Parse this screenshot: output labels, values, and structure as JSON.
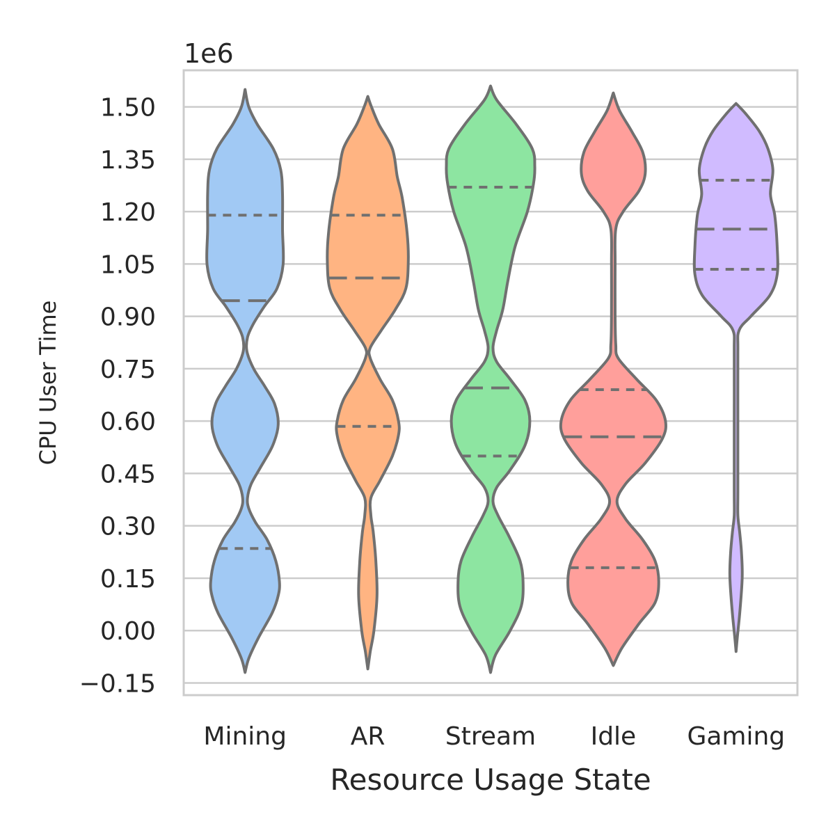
{
  "chart_data": {
    "type": "violin",
    "xlabel": "Resource Usage State",
    "ylabel": "CPU User Time",
    "offset_text": "1e6",
    "ylim": [
      -0.185,
      1.605
    ],
    "y_ticks": [
      "−0.15",
      "0.00",
      "0.15",
      "0.30",
      "0.45",
      "0.60",
      "0.75",
      "0.90",
      "1.05",
      "1.20",
      "1.35",
      "1.50"
    ],
    "grid": true,
    "categories": [
      "Mining",
      "AR",
      "Stream",
      "Idle",
      "Gaming"
    ],
    "colors": [
      "#a1c9f4",
      "#ffb482",
      "#8de5a1",
      "#ff9f9b",
      "#d0bbff"
    ],
    "violins": [
      {
        "category": "Mining",
        "profile": [
          [
            -0.12,
            0.0
          ],
          [
            -0.08,
            0.06
          ],
          [
            -0.02,
            0.22
          ],
          [
            0.05,
            0.44
          ],
          [
            0.1,
            0.54
          ],
          [
            0.14,
            0.56
          ],
          [
            0.2,
            0.5
          ],
          [
            0.26,
            0.36
          ],
          [
            0.31,
            0.17
          ],
          [
            0.35,
            0.06
          ],
          [
            0.38,
            0.04
          ],
          [
            0.42,
            0.1
          ],
          [
            0.47,
            0.26
          ],
          [
            0.53,
            0.45
          ],
          [
            0.59,
            0.54
          ],
          [
            0.65,
            0.48
          ],
          [
            0.7,
            0.32
          ],
          [
            0.75,
            0.14
          ],
          [
            0.8,
            0.03
          ],
          [
            0.84,
            0.04
          ],
          [
            0.88,
            0.14
          ],
          [
            0.93,
            0.32
          ],
          [
            0.98,
            0.52
          ],
          [
            1.05,
            0.62
          ],
          [
            1.15,
            0.61
          ],
          [
            1.25,
            0.61
          ],
          [
            1.32,
            0.58
          ],
          [
            1.38,
            0.46
          ],
          [
            1.45,
            0.2
          ],
          [
            1.5,
            0.06
          ],
          [
            1.55,
            0.0
          ]
        ],
        "q1": 0.235,
        "median": 0.945,
        "q3": 1.19
      },
      {
        "category": "AR",
        "profile": [
          [
            -0.11,
            0.0
          ],
          [
            -0.06,
            0.04
          ],
          [
            0.0,
            0.1
          ],
          [
            0.1,
            0.15
          ],
          [
            0.2,
            0.13
          ],
          [
            0.28,
            0.09
          ],
          [
            0.33,
            0.05
          ],
          [
            0.38,
            0.05
          ],
          [
            0.43,
            0.2
          ],
          [
            0.5,
            0.4
          ],
          [
            0.56,
            0.5
          ],
          [
            0.6,
            0.5
          ],
          [
            0.66,
            0.4
          ],
          [
            0.72,
            0.2
          ],
          [
            0.78,
            0.04
          ],
          [
            0.81,
            0.04
          ],
          [
            0.86,
            0.22
          ],
          [
            0.92,
            0.45
          ],
          [
            0.98,
            0.62
          ],
          [
            1.06,
            0.66
          ],
          [
            1.14,
            0.64
          ],
          [
            1.24,
            0.56
          ],
          [
            1.3,
            0.48
          ],
          [
            1.38,
            0.4
          ],
          [
            1.45,
            0.18
          ],
          [
            1.5,
            0.06
          ],
          [
            1.53,
            0.0
          ]
        ],
        "q1": 0.585,
        "median": 1.01,
        "q3": 1.19
      },
      {
        "category": "Stream",
        "profile": [
          [
            -0.12,
            0.0
          ],
          [
            -0.07,
            0.08
          ],
          [
            0.0,
            0.32
          ],
          [
            0.07,
            0.5
          ],
          [
            0.14,
            0.53
          ],
          [
            0.2,
            0.48
          ],
          [
            0.27,
            0.3
          ],
          [
            0.33,
            0.12
          ],
          [
            0.37,
            0.04
          ],
          [
            0.41,
            0.1
          ],
          [
            0.46,
            0.32
          ],
          [
            0.53,
            0.56
          ],
          [
            0.6,
            0.64
          ],
          [
            0.66,
            0.56
          ],
          [
            0.72,
            0.32
          ],
          [
            0.77,
            0.1
          ],
          [
            0.81,
            0.04
          ],
          [
            0.86,
            0.1
          ],
          [
            0.92,
            0.2
          ],
          [
            1.0,
            0.28
          ],
          [
            1.1,
            0.4
          ],
          [
            1.2,
            0.6
          ],
          [
            1.28,
            0.7
          ],
          [
            1.33,
            0.72
          ],
          [
            1.38,
            0.68
          ],
          [
            1.45,
            0.42
          ],
          [
            1.52,
            0.1
          ],
          [
            1.56,
            0.0
          ]
        ],
        "q1": 0.5,
        "median": 0.695,
        "q3": 1.27
      },
      {
        "category": "Idle",
        "profile": [
          [
            -0.1,
            0.0
          ],
          [
            -0.05,
            0.14
          ],
          [
            0.02,
            0.42
          ],
          [
            0.08,
            0.68
          ],
          [
            0.14,
            0.74
          ],
          [
            0.2,
            0.68
          ],
          [
            0.26,
            0.48
          ],
          [
            0.32,
            0.2
          ],
          [
            0.37,
            0.06
          ],
          [
            0.42,
            0.2
          ],
          [
            0.48,
            0.52
          ],
          [
            0.55,
            0.8
          ],
          [
            0.6,
            0.85
          ],
          [
            0.66,
            0.7
          ],
          [
            0.72,
            0.38
          ],
          [
            0.78,
            0.08
          ],
          [
            0.82,
            0.04
          ],
          [
            0.9,
            0.03
          ],
          [
            1.05,
            0.03
          ],
          [
            1.15,
            0.04
          ],
          [
            1.2,
            0.16
          ],
          [
            1.26,
            0.42
          ],
          [
            1.31,
            0.52
          ],
          [
            1.37,
            0.48
          ],
          [
            1.43,
            0.3
          ],
          [
            1.49,
            0.1
          ],
          [
            1.54,
            0.0
          ]
        ],
        "q1": 0.18,
        "median": 0.555,
        "q3": 0.69
      },
      {
        "category": "Gaming",
        "profile": [
          [
            -0.06,
            0.0
          ],
          [
            -0.02,
            0.02
          ],
          [
            0.05,
            0.06
          ],
          [
            0.15,
            0.1
          ],
          [
            0.22,
            0.09
          ],
          [
            0.28,
            0.06
          ],
          [
            0.33,
            0.03
          ],
          [
            0.4,
            0.03
          ],
          [
            0.6,
            0.03
          ],
          [
            0.8,
            0.03
          ],
          [
            0.86,
            0.05
          ],
          [
            0.9,
            0.24
          ],
          [
            0.96,
            0.55
          ],
          [
            1.02,
            0.67
          ],
          [
            1.1,
            0.67
          ],
          [
            1.19,
            0.63
          ],
          [
            1.25,
            0.56
          ],
          [
            1.32,
            0.6
          ],
          [
            1.38,
            0.52
          ],
          [
            1.43,
            0.38
          ],
          [
            1.48,
            0.16
          ],
          [
            1.51,
            0.0
          ]
        ],
        "q1": 1.035,
        "median": 1.15,
        "q3": 1.29
      }
    ]
  }
}
